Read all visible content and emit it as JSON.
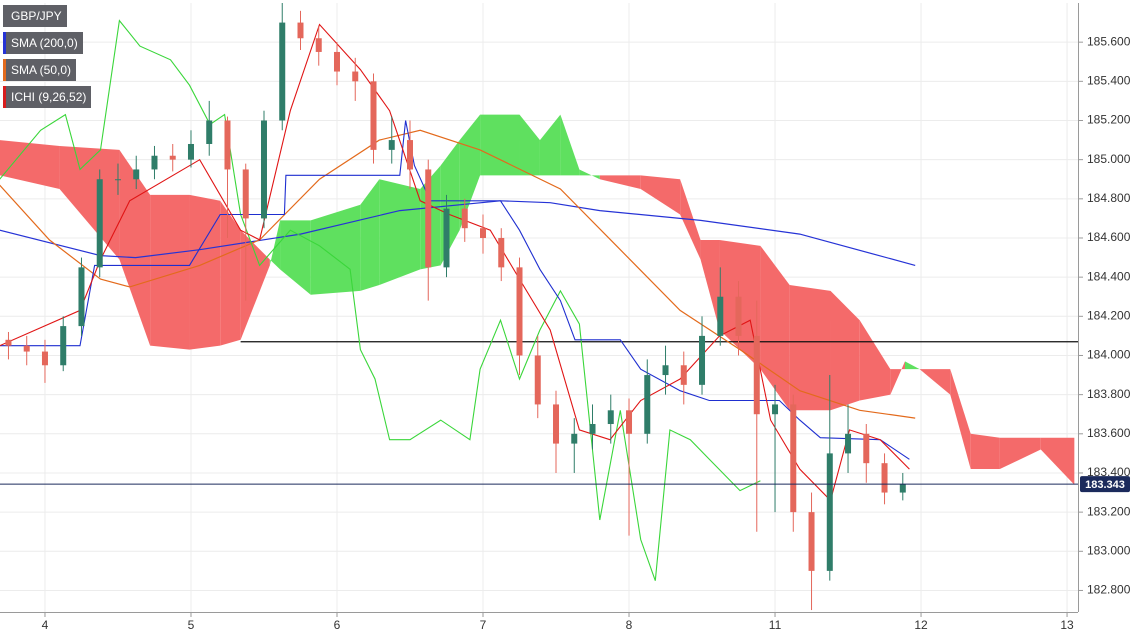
{
  "chart_data": {
    "type": "candlestick",
    "xlim": [
      -0.308,
      7.075
    ],
    "xticks": [
      {
        "value": 0,
        "label": "4"
      },
      {
        "value": 1,
        "label": "5"
      },
      {
        "value": 2,
        "label": "6"
      },
      {
        "value": 3,
        "label": "7"
      },
      {
        "value": 4,
        "label": "8"
      },
      {
        "value": 5,
        "label": "11"
      },
      {
        "value": 6,
        "label": "12"
      },
      {
        "value": 7,
        "label": "13"
      }
    ],
    "ylim": [
      182.69,
      185.8
    ],
    "yticks": [
      {
        "value": 182.8,
        "label": "182.800"
      },
      {
        "value": 183.0,
        "label": "183.000"
      },
      {
        "value": 183.2,
        "label": "183.200"
      },
      {
        "value": 183.4,
        "label": "183.400"
      },
      {
        "value": 183.6,
        "label": "183.600"
      },
      {
        "value": 183.8,
        "label": "183.800"
      },
      {
        "value": 184.0,
        "label": "184.000"
      },
      {
        "value": 184.2,
        "label": "184.200"
      },
      {
        "value": 184.4,
        "label": "184.400"
      },
      {
        "value": 184.6,
        "label": "184.600"
      },
      {
        "value": 184.8,
        "label": "184.800"
      },
      {
        "value": 185.0,
        "label": "185.000"
      },
      {
        "value": 185.2,
        "label": "185.200"
      },
      {
        "value": 185.4,
        "label": "185.400"
      },
      {
        "value": 185.6,
        "label": "185.600"
      }
    ],
    "grid": true,
    "candles": {
      "name": "GBP/JPY",
      "up_color": "#2f7d69",
      "down_color": "#e4675b",
      "x": [
        -0.25,
        -0.125,
        0,
        0.125,
        0.25,
        0.375,
        0.5,
        0.625,
        0.75,
        0.875,
        1,
        1.125,
        1.25,
        1.375,
        1.5,
        1.625,
        1.75,
        1.875,
        2,
        2.125,
        2.25,
        2.375,
        2.5,
        2.625,
        2.75,
        2.875,
        3,
        3.125,
        3.25,
        3.375,
        3.5,
        3.625,
        3.75,
        3.875,
        4,
        4.125,
        4.25,
        4.375,
        4.5,
        4.625,
        4.75,
        4.875,
        5,
        5.125,
        5.25,
        5.375,
        5.5,
        5.625,
        5.75,
        5.875
      ],
      "open": [
        184.08,
        184.05,
        184.02,
        183.95,
        184.15,
        184.45,
        184.9,
        184.9,
        184.95,
        185.02,
        185.0,
        185.08,
        185.2,
        184.95,
        184.7,
        185.2,
        185.7,
        185.62,
        185.55,
        185.45,
        185.4,
        185.05,
        185.1,
        184.95,
        184.45,
        184.75,
        184.65,
        184.6,
        184.45,
        184.0,
        183.75,
        183.55,
        183.6,
        183.65,
        183.72,
        183.6,
        183.9,
        183.95,
        183.85,
        184.1,
        184.3,
        184.1,
        183.7,
        183.75,
        183.2,
        182.9,
        183.5,
        183.6,
        183.45,
        183.3
      ],
      "high": [
        184.12,
        184.1,
        184.08,
        184.2,
        184.5,
        184.95,
        184.98,
        185.02,
        185.07,
        185.08,
        185.15,
        185.3,
        185.22,
        184.98,
        185.25,
        185.8,
        185.76,
        185.68,
        185.6,
        185.52,
        185.44,
        185.22,
        185.2,
        185.0,
        184.82,
        184.8,
        184.72,
        184.65,
        184.5,
        184.1,
        183.82,
        183.68,
        183.75,
        183.8,
        183.78,
        183.98,
        184.05,
        184.02,
        184.2,
        184.45,
        184.38,
        184.28,
        183.85,
        183.8,
        183.3,
        183.9,
        183.75,
        183.65,
        183.5,
        183.4
      ],
      "low": [
        183.98,
        183.95,
        183.86,
        183.92,
        184.1,
        184.4,
        184.82,
        184.85,
        184.9,
        184.94,
        184.96,
        185.02,
        184.6,
        184.28,
        184.65,
        185.15,
        185.56,
        185.48,
        185.38,
        185.3,
        184.98,
        184.98,
        184.85,
        184.28,
        184.4,
        184.58,
        184.52,
        184.38,
        183.9,
        183.68,
        183.4,
        183.4,
        183.52,
        183.55,
        183.08,
        183.55,
        183.8,
        183.75,
        183.8,
        184.05,
        184.0,
        183.1,
        183.2,
        183.1,
        182.7,
        182.85,
        183.4,
        183.35,
        183.24,
        183.26
      ],
      "close": [
        184.05,
        184.02,
        183.95,
        184.15,
        184.45,
        184.9,
        184.9,
        184.95,
        185.02,
        185.0,
        185.08,
        185.2,
        184.95,
        184.7,
        185.2,
        185.7,
        185.62,
        185.55,
        185.45,
        185.4,
        185.05,
        185.1,
        184.95,
        184.45,
        184.75,
        184.65,
        184.6,
        184.45,
        184.0,
        183.75,
        183.55,
        183.6,
        183.65,
        183.72,
        183.6,
        183.9,
        183.95,
        183.85,
        184.1,
        184.3,
        184.1,
        183.7,
        183.75,
        183.2,
        182.9,
        183.5,
        183.6,
        183.45,
        183.3,
        183.343
      ]
    },
    "series": [
      {
        "name": "SMA (200,0)",
        "color": "#2633d6",
        "x": [
          -0.31,
          0.38,
          0.62,
          1.06,
          1.75,
          2.43,
          3.12,
          3.46,
          3.8,
          4.49,
          5.17,
          5.96
        ],
        "values": [
          184.64,
          184.51,
          184.5,
          184.54,
          184.62,
          184.74,
          184.79,
          184.78,
          184.74,
          184.69,
          184.62,
          184.46
        ]
      },
      {
        "name": "SMA (50,0)",
        "color": "#e36a1c",
        "x": [
          -0.31,
          0.03,
          0.38,
          0.58,
          1.06,
          1.47,
          1.88,
          2.29,
          2.57,
          2.98,
          3.53,
          3.94,
          4.35,
          4.76,
          5.17,
          5.58,
          5.96
        ],
        "values": [
          184.87,
          184.59,
          184.39,
          184.35,
          184.46,
          184.59,
          184.9,
          185.1,
          185.15,
          185.05,
          184.85,
          184.54,
          184.23,
          184.03,
          183.82,
          183.72,
          183.68
        ]
      }
    ],
    "ichimoku": {
      "name": "ICHI (9,26,52)",
      "color": "#d81c1c",
      "tenkan": {
        "color": "#e01515",
        "x": [
          -0.31,
          0.24,
          0.38,
          0.58,
          1.06,
          1.34,
          1.47,
          1.68,
          1.88,
          2.16,
          2.36,
          2.57,
          2.77,
          3.05,
          3.25,
          3.46,
          3.66,
          3.87,
          4.08,
          4.35,
          4.62,
          4.83,
          4.97,
          5.17,
          5.38,
          5.51,
          5.72,
          5.92
        ],
        "values": [
          184.05,
          184.23,
          184.49,
          184.79,
          185.0,
          184.64,
          184.59,
          185.25,
          185.69,
          185.46,
          185.25,
          184.79,
          184.72,
          184.64,
          184.39,
          184.13,
          183.62,
          183.57,
          183.77,
          183.88,
          184.1,
          184.18,
          183.67,
          183.42,
          183.26,
          183.62,
          183.57,
          183.42
        ]
      },
      "kijun": {
        "color": "#1f2fd0",
        "x": [
          -0.31,
          0.24,
          0.34,
          0.99,
          1.2,
          1.64,
          1.65,
          2.43,
          2.47,
          2.53,
          2.64,
          3.12,
          3.25,
          3.39,
          3.53,
          3.63,
          3.94,
          4.08,
          4.35,
          4.55,
          5.03,
          5.17,
          5.31,
          5.72,
          5.92
        ],
        "values": [
          184.05,
          184.05,
          184.46,
          184.46,
          184.72,
          184.72,
          184.92,
          184.92,
          185.2,
          184.97,
          184.79,
          184.79,
          184.64,
          184.44,
          184.28,
          184.08,
          184.08,
          183.93,
          183.82,
          183.77,
          183.77,
          183.67,
          183.58,
          183.57,
          183.47
        ]
      },
      "chikou": {
        "color": "#3ad63a",
        "x": [
          -0.31,
          -0.03,
          0.14,
          0.24,
          0.38,
          0.51,
          0.65,
          0.86,
          0.99,
          1.13,
          1.23,
          1.34,
          1.47,
          1.68,
          1.88,
          2.09,
          2.16,
          2.26,
          2.36,
          2.5,
          2.71,
          2.91,
          2.98,
          3.12,
          3.25,
          3.39,
          3.53,
          3.66,
          3.8,
          3.94,
          4.08,
          4.18,
          4.28,
          4.42,
          4.55,
          4.76,
          4.9
        ],
        "values": [
          184.9,
          185.15,
          185.23,
          184.95,
          185.05,
          185.71,
          185.58,
          185.51,
          185.38,
          185.18,
          185.23,
          184.72,
          184.46,
          184.64,
          184.56,
          184.44,
          184.03,
          183.88,
          183.57,
          183.57,
          183.67,
          183.57,
          183.93,
          184.18,
          183.88,
          184.13,
          184.33,
          184.16,
          183.16,
          183.72,
          183.06,
          182.85,
          183.62,
          183.57,
          183.47,
          183.31,
          183.36
        ]
      },
      "cloud": {
        "up_color": "#5fe05f",
        "down_color": "#f46a6a",
        "x": [
          -0.31,
          0.1,
          0.51,
          0.72,
          0.99,
          1.2,
          1.34,
          1.54,
          1.61,
          1.82,
          2.16,
          2.29,
          2.57,
          2.71,
          2.84,
          2.98,
          3.25,
          3.39,
          3.53,
          3.66,
          3.8,
          4.08,
          4.35,
          4.49,
          4.62,
          4.9,
          5.1,
          5.38,
          5.58,
          5.79,
          5.89,
          5.99,
          6.2,
          6.34,
          6.54,
          6.82,
          7.05
        ],
        "span_a": [
          184.92,
          184.85,
          184.49,
          184.05,
          184.03,
          184.05,
          184.08,
          184.46,
          184.69,
          184.69,
          184.77,
          184.9,
          184.85,
          184.97,
          185.1,
          185.23,
          185.23,
          185.1,
          185.23,
          184.95,
          184.9,
          184.85,
          184.72,
          184.49,
          184.13,
          183.93,
          183.72,
          183.72,
          183.77,
          183.8,
          183.97,
          183.93,
          183.8,
          183.42,
          183.42,
          183.52,
          183.34
        ],
        "span_b": [
          185.1,
          185.07,
          185.05,
          184.82,
          184.82,
          184.79,
          184.64,
          184.49,
          184.44,
          184.31,
          184.33,
          184.36,
          184.44,
          184.46,
          184.64,
          184.92,
          184.92,
          184.92,
          184.92,
          184.92,
          184.92,
          184.92,
          184.9,
          184.59,
          184.59,
          184.56,
          184.36,
          184.33,
          184.18,
          183.93,
          183.93,
          183.93,
          183.93,
          183.6,
          183.58,
          183.58,
          183.58
        ]
      }
    },
    "level_line": {
      "value": 184.07,
      "x_start": 1.34,
      "color": "#111111"
    },
    "last_price": {
      "value": 183.343,
      "label": "183.343",
      "color": "#1b2a5c"
    }
  }
}
